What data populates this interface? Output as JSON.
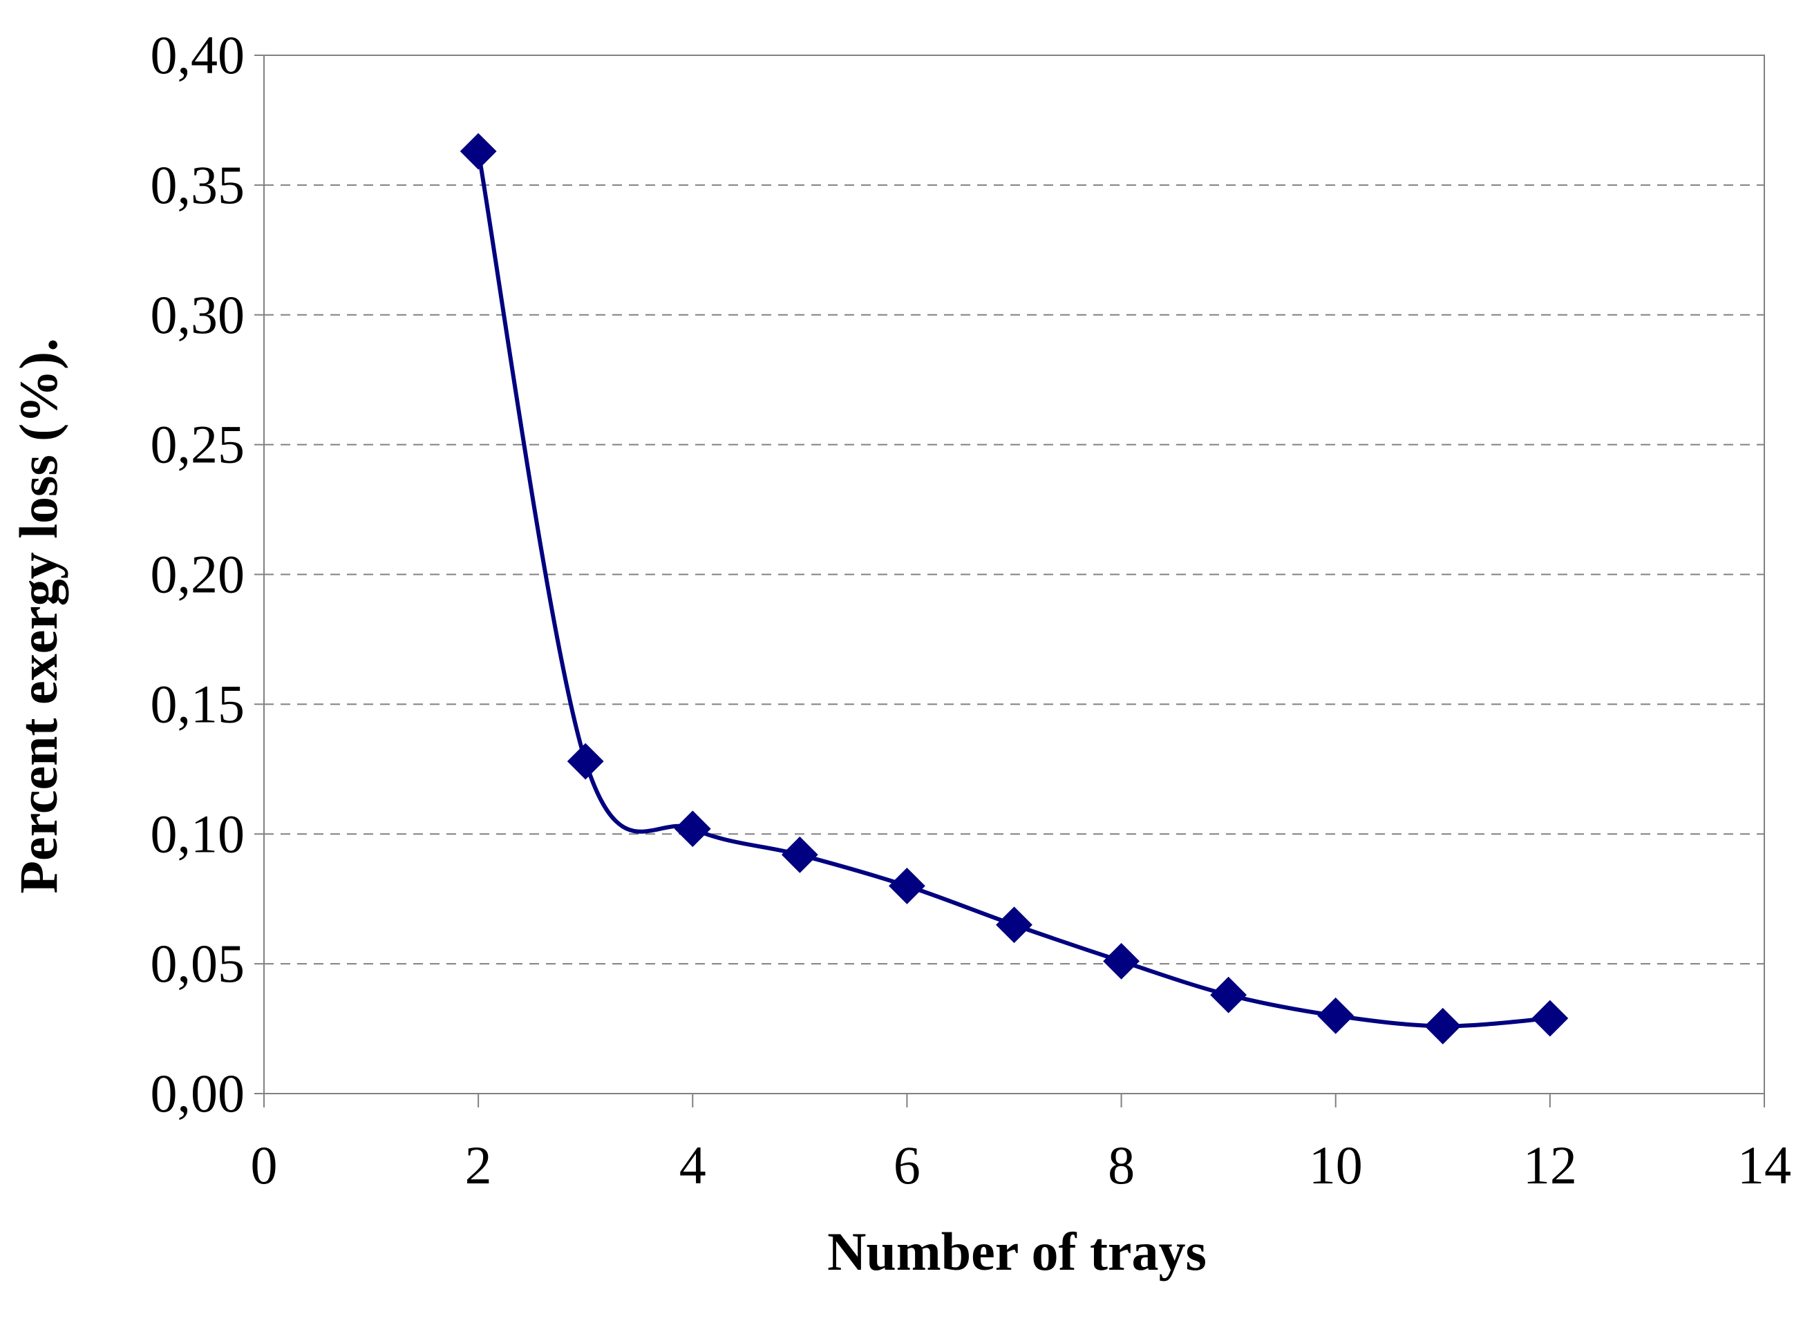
{
  "chart_data": {
    "type": "line",
    "title": "",
    "xlabel": "Number of  trays",
    "ylabel": "Percent exergy loss  (%).",
    "xlim": [
      0,
      14
    ],
    "ylim": [
      0,
      0.4
    ],
    "x_ticks": [
      0,
      2,
      4,
      6,
      8,
      10,
      12,
      14
    ],
    "x_tick_labels": [
      "0",
      "2",
      "4",
      "6",
      "8",
      "10",
      "12",
      "14"
    ],
    "y_ticks": [
      0,
      0.05,
      0.1,
      0.15,
      0.2,
      0.25,
      0.3,
      0.35,
      0.4
    ],
    "y_tick_labels": [
      "0,00",
      "0,05",
      "0,10",
      "0,15",
      "0,20",
      "0,25",
      "0,30",
      "0,35",
      "0,40"
    ],
    "grid": "horizontal dashed",
    "legend": "none",
    "smooth": true,
    "marker": "diamond",
    "series": [
      {
        "color": "#000080",
        "x": [
          2,
          3,
          4,
          5,
          6,
          7,
          8,
          9,
          10,
          11,
          12
        ],
        "y": [
          0.363,
          0.128,
          0.102,
          0.092,
          0.08,
          0.065,
          0.051,
          0.038,
          0.03,
          0.026,
          0.029
        ]
      }
    ]
  }
}
